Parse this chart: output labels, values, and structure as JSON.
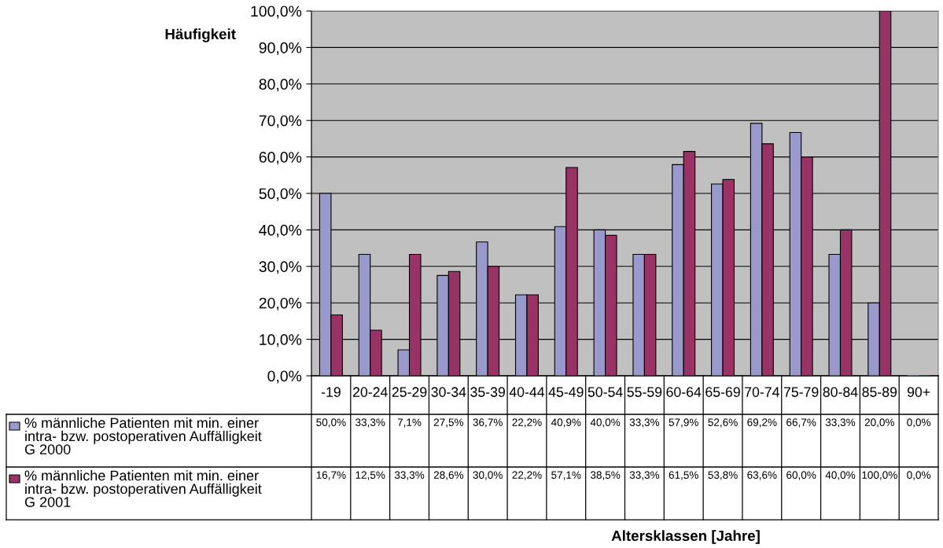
{
  "chart_data": {
    "type": "bar",
    "ylabel": "Häufigkeit",
    "annotations": [
      "Altersklassen [Jahre]"
    ],
    "categories": [
      "-19",
      "20-24",
      "25-29",
      "30-34",
      "35-39",
      "40-44",
      "45-49",
      "50-54",
      "55-59",
      "60-64",
      "65-69",
      "70-74",
      "75-79",
      "80-84",
      "85-89",
      "90+"
    ],
    "series": [
      {
        "name": "% männliche Patienten mit min. einer intra- bzw. postoperativen Auffälligkeit G 2000",
        "color": "#9999cc",
        "values": [
          50.0,
          33.3,
          7.1,
          27.5,
          36.7,
          22.2,
          40.9,
          40.0,
          33.3,
          57.9,
          52.6,
          69.2,
          66.7,
          33.3,
          20.0,
          0.0
        ],
        "value_labels": [
          "50,0%",
          "33,3%",
          "7,1%",
          "27,5%",
          "36,7%",
          "22,2%",
          "40,9%",
          "40,0%",
          "33,3%",
          "57,9%",
          "52,6%",
          "69,2%",
          "66,7%",
          "33,3%",
          "20,0%",
          "0,0%"
        ]
      },
      {
        "name": "% männliche Patienten mit min. einer intra- bzw. postoperativen Auffälligkeit G 2001",
        "color": "#993366",
        "values": [
          16.7,
          12.5,
          33.3,
          28.6,
          30.0,
          22.2,
          57.1,
          38.5,
          33.3,
          61.5,
          53.8,
          63.6,
          60.0,
          40.0,
          100.0,
          0.0
        ],
        "value_labels": [
          "16,7%",
          "12,5%",
          "33,3%",
          "28,6%",
          "30,0%",
          "22,2%",
          "57,1%",
          "38,5%",
          "33,3%",
          "61,5%",
          "53,8%",
          "63,6%",
          "60,0%",
          "40,0%",
          "100,0%",
          "0,0%"
        ]
      }
    ],
    "ylim": [
      0,
      100
    ],
    "yticks": [
      {
        "value": 0,
        "label": "0,0%"
      },
      {
        "value": 10,
        "label": "10,0%"
      },
      {
        "value": 20,
        "label": "20,0%"
      },
      {
        "value": 30,
        "label": "30,0%"
      },
      {
        "value": 40,
        "label": "40,0%"
      },
      {
        "value": 50,
        "label": "50,0%"
      },
      {
        "value": 60,
        "label": "60,0%"
      },
      {
        "value": 70,
        "label": "70,0%"
      },
      {
        "value": 80,
        "label": "80,0%"
      },
      {
        "value": 90,
        "label": "90,0%"
      },
      {
        "value": 100,
        "label": "100,0%"
      }
    ],
    "grid": "y",
    "legend": "bottom left"
  }
}
